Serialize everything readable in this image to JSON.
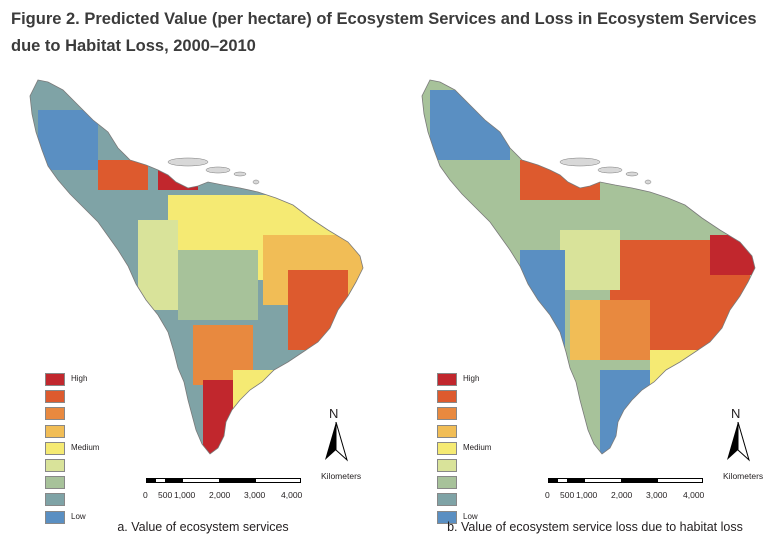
{
  "figure": {
    "title": "Figure 2. Predicted Value (per hectare) of Ecosystem Services and Loss in Ecosystem Services due to Habitat Loss, 2000–2010"
  },
  "colors": {
    "scale": [
      "#c1272d",
      "#dd5a2e",
      "#e8893f",
      "#f1bd56",
      "#f5ea73",
      "#d9e39a",
      "#a7c29a",
      "#7fa3a6",
      "#5a8fc2"
    ],
    "boundary": "#7a7a7a",
    "caribbean": "#d8d8d8"
  },
  "legend": {
    "high": "High",
    "medium": "Medium",
    "low": "Low"
  },
  "north_arrow": {
    "letter": "N"
  },
  "scalebar": {
    "unit": "Kilometers",
    "ticks": [
      "0",
      "500",
      "1,000",
      "2,000",
      "3,000",
      "4,000"
    ]
  },
  "panels": {
    "a": {
      "caption": "a. Value of ecosystem services"
    },
    "b": {
      "caption": "b. Value of ecosystem service loss due to habitat loss"
    }
  }
}
